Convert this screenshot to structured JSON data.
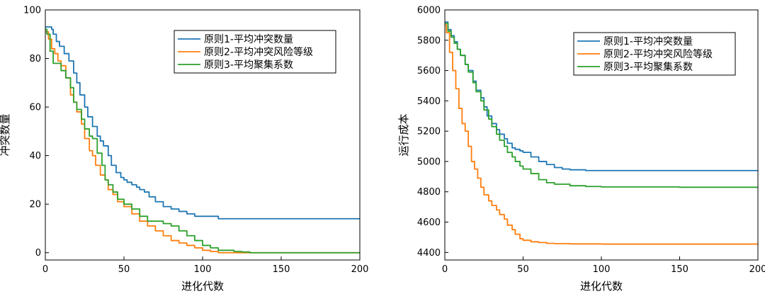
{
  "chart_data": [
    {
      "type": "line",
      "xlabel": "进化代数",
      "ylabel": "冲突数量",
      "xlim": [
        0,
        200
      ],
      "ylim": [
        -3,
        100
      ],
      "xticks": [
        0,
        50,
        100,
        150,
        200
      ],
      "yticks": [
        0,
        20,
        40,
        60,
        80,
        100
      ],
      "grid": false,
      "legend_position": "top-right",
      "series": [
        {
          "name": "原则1-平均冲突数量",
          "color": "#1f77b4",
          "x": [
            0,
            3,
            4,
            5,
            7,
            9,
            12,
            15,
            18,
            20,
            22,
            25,
            27,
            30,
            33,
            35,
            37,
            40,
            42,
            45,
            48,
            50,
            52,
            55,
            58,
            60,
            63,
            66,
            70,
            75,
            80,
            85,
            90,
            95,
            100,
            105,
            108,
            110,
            120,
            150,
            200
          ],
          "y": [
            93,
            93,
            92,
            90,
            87,
            85,
            82,
            79,
            74,
            70,
            65,
            60,
            56,
            52,
            48,
            46,
            44,
            40,
            36,
            33,
            31,
            30,
            29,
            28,
            27,
            26,
            25,
            23,
            21,
            19,
            18,
            17,
            16,
            15,
            15,
            15,
            15,
            14,
            14,
            14,
            14
          ]
        },
        {
          "name": "原则2-平均冲突风险等级",
          "color": "#ff7f0e",
          "x": [
            0,
            2,
            4,
            6,
            8,
            10,
            13,
            16,
            18,
            20,
            23,
            25,
            28,
            30,
            32,
            35,
            38,
            40,
            43,
            46,
            50,
            55,
            60,
            65,
            70,
            75,
            80,
            85,
            90,
            95,
            100,
            105,
            110,
            120,
            150,
            200
          ],
          "y": [
            91,
            88,
            84,
            82,
            79,
            77,
            72,
            65,
            62,
            58,
            53,
            47,
            42,
            40,
            36,
            32,
            30,
            26,
            24,
            21,
            19,
            16,
            13,
            11,
            9,
            7,
            5,
            4,
            3,
            2,
            1,
            0.5,
            0,
            0,
            0,
            0
          ]
        },
        {
          "name": "原则3-平均聚集系数",
          "color": "#2ca02c",
          "x": [
            0,
            1,
            3,
            5,
            8,
            10,
            13,
            16,
            18,
            20,
            23,
            25,
            28,
            30,
            33,
            36,
            38,
            40,
            43,
            46,
            50,
            55,
            60,
            65,
            70,
            75,
            80,
            85,
            90,
            95,
            100,
            105,
            110,
            120,
            125,
            130,
            150,
            200
          ],
          "y": [
            92,
            90,
            83,
            78,
            78,
            75,
            72,
            68,
            62,
            59,
            55,
            51,
            48,
            47,
            41,
            36,
            30,
            28,
            25,
            22,
            20,
            18,
            15,
            13,
            13,
            12,
            11,
            9,
            7,
            5,
            3,
            2,
            1,
            0.5,
            0.3,
            0,
            0,
            0
          ]
        }
      ]
    },
    {
      "type": "line",
      "xlabel": "进化代数",
      "ylabel": "运行成本",
      "xlim": [
        0,
        200
      ],
      "ylim": [
        4350,
        6000
      ],
      "xticks": [
        0,
        50,
        100,
        150,
        200
      ],
      "yticks": [
        4400,
        4600,
        4800,
        5000,
        5200,
        5400,
        5600,
        5800,
        6000
      ],
      "grid": false,
      "legend_position": "top-right",
      "series": [
        {
          "name": "原则1-平均冲突数量",
          "color": "#1f77b4",
          "x": [
            0,
            2,
            4,
            6,
            8,
            10,
            13,
            15,
            18,
            20,
            23,
            25,
            27,
            30,
            33,
            35,
            38,
            40,
            43,
            45,
            48,
            50,
            55,
            60,
            65,
            70,
            75,
            80,
            90,
            100,
            120,
            150,
            200
          ],
          "y": [
            5920,
            5870,
            5830,
            5790,
            5740,
            5700,
            5640,
            5600,
            5530,
            5470,
            5420,
            5360,
            5300,
            5250,
            5210,
            5180,
            5150,
            5120,
            5090,
            5080,
            5070,
            5060,
            5030,
            5000,
            4980,
            4960,
            4950,
            4945,
            4940,
            4940,
            4940,
            4940,
            4940
          ]
        },
        {
          "name": "原则2-平均冲突风险等级",
          "color": "#ff7f0e",
          "x": [
            0,
            1,
            3,
            5,
            7,
            9,
            11,
            13,
            15,
            17,
            19,
            21,
            23,
            25,
            28,
            30,
            33,
            35,
            38,
            40,
            43,
            45,
            48,
            50,
            55,
            60,
            65,
            70,
            80,
            100,
            150,
            200
          ],
          "y": [
            5900,
            5850,
            5720,
            5600,
            5480,
            5350,
            5250,
            5200,
            5100,
            5000,
            4950,
            4890,
            4830,
            4780,
            4740,
            4710,
            4680,
            4650,
            4620,
            4580,
            4550,
            4520,
            4490,
            4480,
            4470,
            4465,
            4460,
            4458,
            4456,
            4455,
            4455,
            4455
          ]
        },
        {
          "name": "原则3-平均聚集系数",
          "color": "#2ca02c",
          "x": [
            0,
            2,
            4,
            6,
            8,
            10,
            13,
            15,
            18,
            20,
            23,
            25,
            28,
            30,
            33,
            35,
            38,
            40,
            43,
            45,
            48,
            50,
            55,
            60,
            65,
            70,
            80,
            90,
            100,
            150,
            200
          ],
          "y": [
            5910,
            5860,
            5820,
            5780,
            5740,
            5700,
            5640,
            5590,
            5520,
            5460,
            5400,
            5340,
            5280,
            5230,
            5180,
            5140,
            5100,
            5060,
            5030,
            5000,
            4970,
            4950,
            4920,
            4880,
            4860,
            4850,
            4840,
            4835,
            4832,
            4830,
            4830
          ]
        }
      ]
    }
  ]
}
